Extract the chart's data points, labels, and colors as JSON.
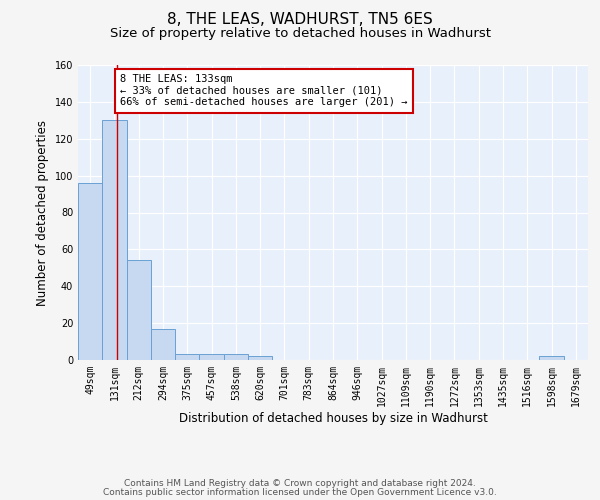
{
  "title": "8, THE LEAS, WADHURST, TN5 6ES",
  "subtitle": "Size of property relative to detached houses in Wadhurst",
  "xlabel": "Distribution of detached houses by size in Wadhurst",
  "ylabel": "Number of detached properties",
  "bar_labels": [
    "49sqm",
    "131sqm",
    "212sqm",
    "294sqm",
    "375sqm",
    "457sqm",
    "538sqm",
    "620sqm",
    "701sqm",
    "783sqm",
    "864sqm",
    "946sqm",
    "1027sqm",
    "1109sqm",
    "1190sqm",
    "1272sqm",
    "1353sqm",
    "1435sqm",
    "1516sqm",
    "1598sqm",
    "1679sqm"
  ],
  "bar_heights": [
    96,
    130,
    54,
    17,
    3,
    3,
    3,
    2,
    0,
    0,
    0,
    0,
    0,
    0,
    0,
    0,
    0,
    0,
    0,
    2,
    0
  ],
  "bar_color": "#c6d9f0",
  "bar_edge_color": "#6aa0d4",
  "ylim": [
    0,
    160
  ],
  "yticks": [
    0,
    20,
    40,
    60,
    80,
    100,
    120,
    140,
    160
  ],
  "property_line_x": 1.12,
  "annotation_text": "8 THE LEAS: 133sqm\n← 33% of detached houses are smaller (101)\n66% of semi-detached houses are larger (201) →",
  "annotation_box_color": "#ffffff",
  "annotation_box_edge_color": "#cc0000",
  "red_line_color": "#cc0000",
  "footer_line1": "Contains HM Land Registry data © Crown copyright and database right 2024.",
  "footer_line2": "Contains public sector information licensed under the Open Government Licence v3.0.",
  "background_color": "#e8f0fb",
  "grid_color": "#ffffff",
  "fig_bg_color": "#f5f5f5",
  "title_fontsize": 11,
  "subtitle_fontsize": 9.5,
  "axis_label_fontsize": 8.5,
  "tick_fontsize": 7,
  "annotation_fontsize": 7.5,
  "footer_fontsize": 6.5
}
